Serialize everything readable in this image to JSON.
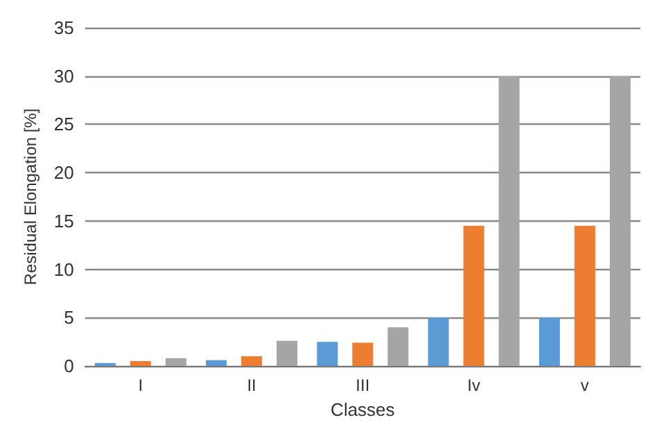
{
  "chart_data": {
    "type": "bar",
    "xlabel": "Classes",
    "ylabel": "Residual Elongation [%]",
    "categories": [
      "I",
      "II",
      "III",
      "Iv",
      "v"
    ],
    "series": [
      {
        "color": "#5b9bd5",
        "values": [
          0.3,
          0.6,
          2.5,
          5.0,
          5.0
        ]
      },
      {
        "color": "#ed7d31",
        "values": [
          0.5,
          1.0,
          2.4,
          14.5,
          14.5
        ]
      },
      {
        "color": "#a5a5a5",
        "values": [
          0.8,
          2.6,
          4.0,
          30,
          30
        ]
      }
    ],
    "ylim": [
      0,
      35
    ],
    "yticks": [
      0,
      5,
      10,
      15,
      20,
      25,
      30,
      35
    ],
    "grid": "y"
  }
}
